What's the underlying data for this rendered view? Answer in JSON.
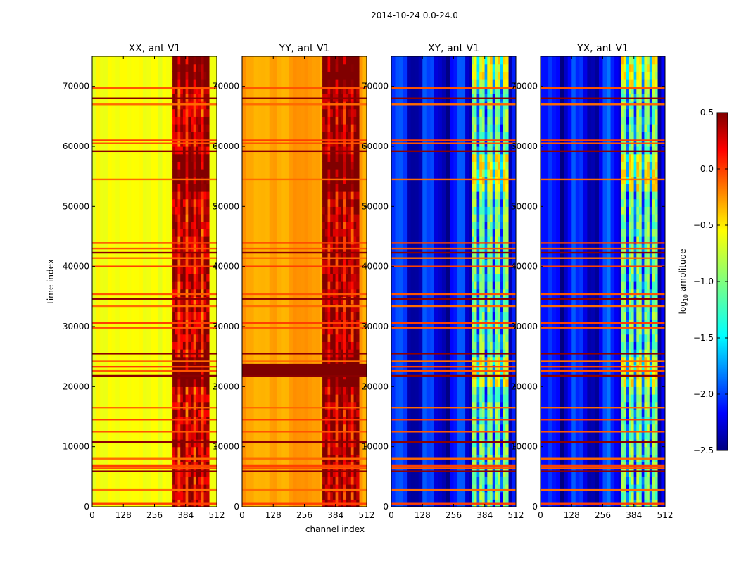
{
  "chart_data": {
    "type": "heatmap",
    "title": "2014-10-24 0.0-24.0",
    "xlabel": "channel index",
    "ylabel": "time index",
    "xlim": [
      0,
      512
    ],
    "ylim": [
      0,
      75000
    ],
    "x_ticks": [
      0,
      128,
      256,
      384,
      512
    ],
    "y_ticks": [
      0,
      10000,
      20000,
      30000,
      40000,
      50000,
      60000,
      70000
    ],
    "panels": [
      {
        "title": "XX, ant V1",
        "baseline_log10": -0.65,
        "rfi_log10": 0.35
      },
      {
        "title": "YY, ant V1",
        "baseline_log10": -0.35,
        "rfi_log10": 0.45
      },
      {
        "title": "XY, ant V1",
        "baseline_log10": -2.15,
        "rfi_log10": -1.0
      },
      {
        "title": "YX, ant V1",
        "baseline_log10": -2.15,
        "rfi_log10": -1.0
      }
    ],
    "rfi_channel_range": [
      330,
      480
    ],
    "flagged_time_rows": [
      500,
      2800,
      5900,
      6400,
      6800,
      8000,
      10800,
      12500,
      14500,
      16500,
      21800,
      22600,
      23300,
      24200,
      25500,
      29800,
      30600,
      33400,
      34600,
      35400,
      40000,
      41400,
      42300,
      43000,
      43900,
      54500,
      59200,
      60500,
      61000,
      67000,
      68000,
      69700
    ],
    "colorbar": {
      "label": "log10 amplitude",
      "min": -2.5,
      "max": 0.5,
      "ticks": [
        "0.5",
        "0.0",
        "−0.5",
        "−1.0",
        "−1.5",
        "−2.0",
        "−2.5"
      ],
      "colormap": "jet"
    },
    "colors": {
      "jet": [
        "#00007f",
        "#0000ff",
        "#007fff",
        "#00ffff",
        "#7fff7f",
        "#ffff00",
        "#ff7f00",
        "#ff0000",
        "#7f0000"
      ]
    }
  }
}
